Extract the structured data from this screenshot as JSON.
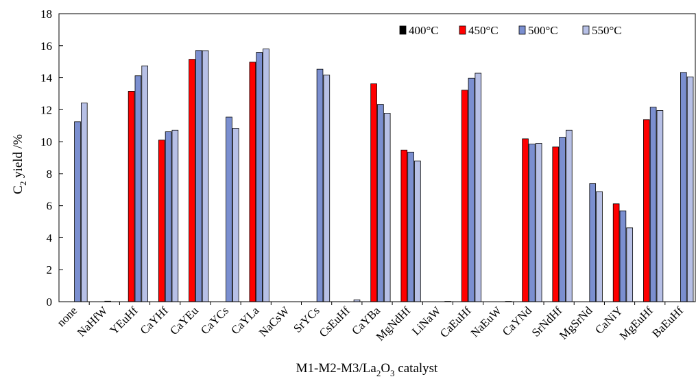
{
  "chart_data": {
    "type": "bar",
    "xlabel": "M1-M2-M3/La₂O₃ catalyst",
    "xlabel_parts": {
      "main": "M1-M2-M3/La",
      "sub1": "2",
      "mid": "O",
      "sub2": "3",
      "tail": " catalyst"
    },
    "ylabel": "C₂ yield /%",
    "ylabel_parts": {
      "main": "C",
      "sub": "2",
      "tail": " yield /%"
    },
    "ylim": [
      0,
      18
    ],
    "yticks": [
      "0",
      "2",
      "4",
      "6",
      "8",
      "10",
      "12",
      "14",
      "16",
      "18"
    ],
    "grid": false,
    "legend_position": "top-right",
    "categories": [
      "none",
      "NaHfW",
      "YEuHf",
      "CaYHf",
      "CaYEu",
      "CaYCs",
      "CaYLa",
      "NaCsW",
      "SrYCs",
      "CsEuHf",
      "CaYBa",
      "MgNdHf",
      "LiNaW",
      "CaEuHf",
      "NaEuW",
      "CaYNd",
      "SrNdHf",
      "MgSrNd",
      "CaNiY",
      "MgEuHf",
      "BaEuHf"
    ],
    "series": [
      {
        "name": "400°C",
        "color": "#000000",
        "values": [
          0,
          0,
          0,
          0,
          0,
          0,
          0,
          0,
          0,
          0,
          0,
          0,
          0,
          0,
          0,
          0,
          0,
          0,
          0,
          0,
          0
        ]
      },
      {
        "name": "450°C",
        "color": "#ff0000",
        "values": [
          0,
          0,
          13.15,
          10.1,
          15.15,
          0,
          14.97,
          0,
          0,
          0,
          13.62,
          9.48,
          0,
          13.22,
          0,
          10.18,
          9.67,
          0,
          6.12,
          11.38,
          0
        ]
      },
      {
        "name": "500°C",
        "color": "#7b8fd0",
        "values": [
          11.25,
          0.03,
          14.12,
          10.62,
          15.7,
          11.54,
          15.58,
          0,
          14.53,
          0,
          12.33,
          9.35,
          0,
          13.97,
          0,
          9.85,
          10.28,
          7.38,
          5.68,
          12.16,
          14.33
        ]
      },
      {
        "name": "550°C",
        "color": "#b7c0e6",
        "values": [
          12.42,
          0,
          14.74,
          10.72,
          15.69,
          10.84,
          15.8,
          0,
          14.16,
          0.12,
          11.78,
          8.8,
          0.02,
          14.28,
          0.02,
          9.9,
          10.72,
          6.88,
          4.62,
          11.95,
          14.05
        ]
      }
    ]
  }
}
